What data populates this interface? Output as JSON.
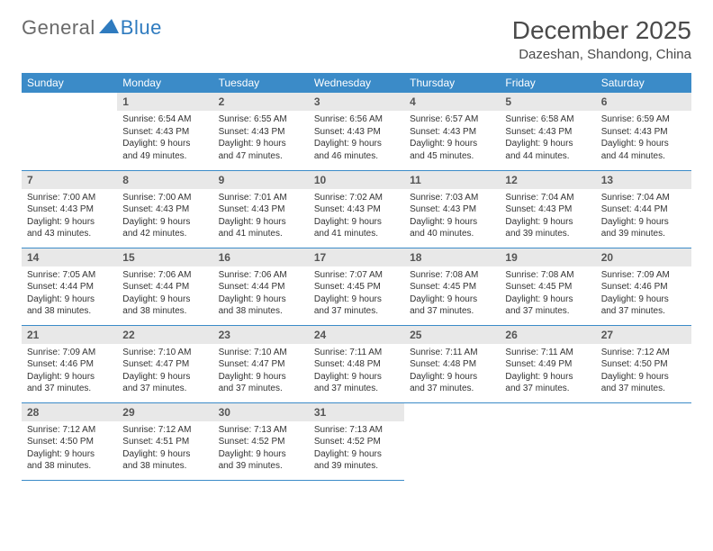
{
  "logo": {
    "text1": "General",
    "text2": "Blue",
    "tri_color": "#2f7bbf"
  },
  "title": "December 2025",
  "location": "Dazeshan, Shandong, China",
  "colors": {
    "header_bg": "#3b8bc8",
    "header_fg": "#ffffff",
    "daynum_bg": "#e8e8e8",
    "daynum_fg": "#555555",
    "rule": "#3b8bc8",
    "body_text": "#333333"
  },
  "font": {
    "title_size": 28,
    "location_size": 15,
    "dayhead_size": 12,
    "body_size": 10
  },
  "day_headers": [
    "Sunday",
    "Monday",
    "Tuesday",
    "Wednesday",
    "Thursday",
    "Friday",
    "Saturday"
  ],
  "weeks": [
    [
      {
        "n": "",
        "sr": "",
        "ss": "",
        "dl": ""
      },
      {
        "n": "1",
        "sr": "6:54 AM",
        "ss": "4:43 PM",
        "dl": "9 hours and 49 minutes."
      },
      {
        "n": "2",
        "sr": "6:55 AM",
        "ss": "4:43 PM",
        "dl": "9 hours and 47 minutes."
      },
      {
        "n": "3",
        "sr": "6:56 AM",
        "ss": "4:43 PM",
        "dl": "9 hours and 46 minutes."
      },
      {
        "n": "4",
        "sr": "6:57 AM",
        "ss": "4:43 PM",
        "dl": "9 hours and 45 minutes."
      },
      {
        "n": "5",
        "sr": "6:58 AM",
        "ss": "4:43 PM",
        "dl": "9 hours and 44 minutes."
      },
      {
        "n": "6",
        "sr": "6:59 AM",
        "ss": "4:43 PM",
        "dl": "9 hours and 44 minutes."
      }
    ],
    [
      {
        "n": "7",
        "sr": "7:00 AM",
        "ss": "4:43 PM",
        "dl": "9 hours and 43 minutes."
      },
      {
        "n": "8",
        "sr": "7:00 AM",
        "ss": "4:43 PM",
        "dl": "9 hours and 42 minutes."
      },
      {
        "n": "9",
        "sr": "7:01 AM",
        "ss": "4:43 PM",
        "dl": "9 hours and 41 minutes."
      },
      {
        "n": "10",
        "sr": "7:02 AM",
        "ss": "4:43 PM",
        "dl": "9 hours and 41 minutes."
      },
      {
        "n": "11",
        "sr": "7:03 AM",
        "ss": "4:43 PM",
        "dl": "9 hours and 40 minutes."
      },
      {
        "n": "12",
        "sr": "7:04 AM",
        "ss": "4:43 PM",
        "dl": "9 hours and 39 minutes."
      },
      {
        "n": "13",
        "sr": "7:04 AM",
        "ss": "4:44 PM",
        "dl": "9 hours and 39 minutes."
      }
    ],
    [
      {
        "n": "14",
        "sr": "7:05 AM",
        "ss": "4:44 PM",
        "dl": "9 hours and 38 minutes."
      },
      {
        "n": "15",
        "sr": "7:06 AM",
        "ss": "4:44 PM",
        "dl": "9 hours and 38 minutes."
      },
      {
        "n": "16",
        "sr": "7:06 AM",
        "ss": "4:44 PM",
        "dl": "9 hours and 38 minutes."
      },
      {
        "n": "17",
        "sr": "7:07 AM",
        "ss": "4:45 PM",
        "dl": "9 hours and 37 minutes."
      },
      {
        "n": "18",
        "sr": "7:08 AM",
        "ss": "4:45 PM",
        "dl": "9 hours and 37 minutes."
      },
      {
        "n": "19",
        "sr": "7:08 AM",
        "ss": "4:45 PM",
        "dl": "9 hours and 37 minutes."
      },
      {
        "n": "20",
        "sr": "7:09 AM",
        "ss": "4:46 PM",
        "dl": "9 hours and 37 minutes."
      }
    ],
    [
      {
        "n": "21",
        "sr": "7:09 AM",
        "ss": "4:46 PM",
        "dl": "9 hours and 37 minutes."
      },
      {
        "n": "22",
        "sr": "7:10 AM",
        "ss": "4:47 PM",
        "dl": "9 hours and 37 minutes."
      },
      {
        "n": "23",
        "sr": "7:10 AM",
        "ss": "4:47 PM",
        "dl": "9 hours and 37 minutes."
      },
      {
        "n": "24",
        "sr": "7:11 AM",
        "ss": "4:48 PM",
        "dl": "9 hours and 37 minutes."
      },
      {
        "n": "25",
        "sr": "7:11 AM",
        "ss": "4:48 PM",
        "dl": "9 hours and 37 minutes."
      },
      {
        "n": "26",
        "sr": "7:11 AM",
        "ss": "4:49 PM",
        "dl": "9 hours and 37 minutes."
      },
      {
        "n": "27",
        "sr": "7:12 AM",
        "ss": "4:50 PM",
        "dl": "9 hours and 37 minutes."
      }
    ],
    [
      {
        "n": "28",
        "sr": "7:12 AM",
        "ss": "4:50 PM",
        "dl": "9 hours and 38 minutes."
      },
      {
        "n": "29",
        "sr": "7:12 AM",
        "ss": "4:51 PM",
        "dl": "9 hours and 38 minutes."
      },
      {
        "n": "30",
        "sr": "7:13 AM",
        "ss": "4:52 PM",
        "dl": "9 hours and 39 minutes."
      },
      {
        "n": "31",
        "sr": "7:13 AM",
        "ss": "4:52 PM",
        "dl": "9 hours and 39 minutes."
      },
      {
        "n": "",
        "sr": "",
        "ss": "",
        "dl": ""
      },
      {
        "n": "",
        "sr": "",
        "ss": "",
        "dl": ""
      },
      {
        "n": "",
        "sr": "",
        "ss": "",
        "dl": ""
      }
    ]
  ],
  "labels": {
    "sunrise": "Sunrise: ",
    "sunset": "Sunset: ",
    "daylight": "Daylight: "
  }
}
